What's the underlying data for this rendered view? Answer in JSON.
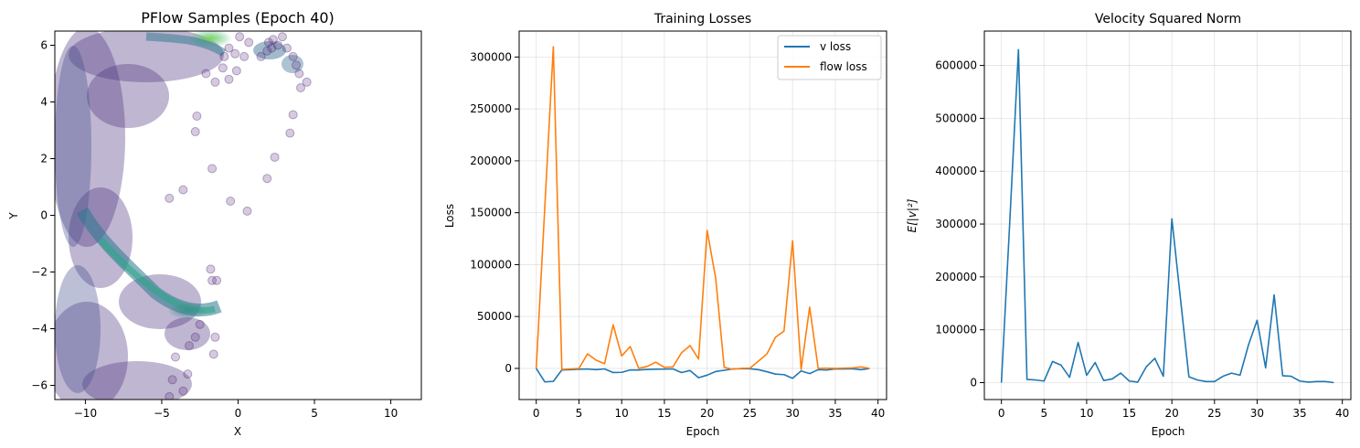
{
  "chart_data": [
    {
      "id": "scatter",
      "type": "scatter",
      "title": "PFlow Samples (Epoch 40)",
      "xlabel": "X",
      "ylabel": "Y",
      "xlim": [
        -12,
        12
      ],
      "ylim": [
        -6.5,
        6.5
      ],
      "xticks": [
        -10,
        -5,
        0,
        5,
        10
      ],
      "yticks": [
        -6,
        -4,
        -2,
        0,
        2,
        4,
        6
      ],
      "xtick_labels": [
        "−10",
        "−5",
        "0",
        "5",
        "10"
      ],
      "ytick_labels": [
        "−6",
        "−4",
        "−2",
        "0",
        "2",
        "4",
        "6"
      ],
      "grid": false,
      "colormap": "viridis",
      "marker_alpha": 0.25,
      "points": [
        [
          0.6,
          0.15
        ],
        [
          -0.5,
          0.5
        ],
        [
          -1.7,
          1.65
        ],
        [
          1.9,
          1.3
        ],
        [
          2.4,
          2.05
        ],
        [
          3.4,
          2.9
        ],
        [
          3.6,
          3.55
        ],
        [
          -2.8,
          2.95
        ],
        [
          -4.5,
          0.6
        ],
        [
          -3.6,
          0.9
        ],
        [
          -2.7,
          3.5
        ],
        [
          -1.5,
          4.7
        ],
        [
          4.5,
          4.7
        ],
        [
          4.1,
          4.5
        ],
        [
          -0.6,
          4.8
        ],
        [
          -1.8,
          -1.9
        ],
        [
          -1.7,
          -2.3
        ],
        [
          -1.4,
          -2.3
        ],
        [
          -2.5,
          -3.85
        ],
        [
          -1.5,
          -4.3
        ],
        [
          -1.6,
          -4.9
        ],
        [
          -3.2,
          -4.6
        ],
        [
          -2.8,
          -4.3
        ],
        [
          -4.1,
          -5.0
        ],
        [
          -3.3,
          -5.6
        ],
        [
          -4.3,
          -5.8
        ],
        [
          -4.5,
          -6.4
        ],
        [
          -3.6,
          -6.2
        ],
        [
          2.0,
          6.1
        ],
        [
          2.2,
          5.9
        ],
        [
          2.6,
          6.0
        ],
        [
          3.2,
          5.9
        ],
        [
          3.6,
          5.6
        ],
        [
          3.8,
          5.3
        ],
        [
          4.0,
          5.0
        ],
        [
          2.9,
          6.3
        ],
        [
          1.5,
          5.6
        ],
        [
          1.9,
          5.8
        ],
        [
          2.3,
          6.2
        ],
        [
          0.1,
          6.3
        ],
        [
          0.7,
          6.1
        ],
        [
          -0.6,
          5.9
        ],
        [
          0.4,
          5.6
        ],
        [
          -0.1,
          5.1
        ],
        [
          -0.2,
          5.7
        ],
        [
          -1.0,
          5.2
        ],
        [
          -0.9,
          5.6
        ],
        [
          -2.1,
          5.0
        ]
      ]
    },
    {
      "id": "losses",
      "type": "line",
      "title": "Training Losses",
      "xlabel": "Epoch",
      "ylabel": "Loss",
      "xlim": [
        -2,
        41
      ],
      "ylim": [
        -30000,
        325000
      ],
      "xticks": [
        0,
        5,
        10,
        15,
        20,
        25,
        30,
        35,
        40
      ],
      "yticks": [
        0,
        50000,
        100000,
        150000,
        200000,
        250000,
        300000
      ],
      "xtick_labels": [
        "0",
        "5",
        "10",
        "15",
        "20",
        "25",
        "30",
        "35",
        "40"
      ],
      "ytick_labels": [
        "0",
        "50000",
        "100000",
        "150000",
        "200000",
        "250000",
        "300000"
      ],
      "grid": true,
      "legend": "top-right",
      "x": [
        0,
        1,
        2,
        3,
        4,
        5,
        6,
        7,
        8,
        9,
        10,
        11,
        12,
        13,
        14,
        15,
        16,
        17,
        18,
        19,
        20,
        21,
        22,
        23,
        24,
        25,
        26,
        27,
        28,
        29,
        30,
        31,
        32,
        33,
        34,
        35,
        36,
        37,
        38,
        39
      ],
      "series": [
        {
          "name": "v loss",
          "color": "#1f77b4",
          "values": [
            0,
            -13000,
            -12500,
            -1500,
            -1200,
            -800,
            -600,
            -1200,
            -500,
            -4000,
            -3800,
            -1500,
            -1500,
            -1000,
            -800,
            -700,
            -500,
            -4000,
            -2000,
            -9000,
            -6500,
            -3000,
            -1800,
            -500,
            -200,
            -300,
            -1200,
            -3200,
            -5500,
            -6000,
            -9500,
            -2500,
            -5000,
            -1200,
            -1500,
            -500,
            -600,
            -300,
            -1200,
            -100
          ]
        },
        {
          "name": "flow loss",
          "color": "#ff7f0e",
          "values": [
            0,
            155000,
            310000,
            -1000,
            -500,
            0,
            14000,
            8000,
            4500,
            42000,
            12000,
            21000,
            0,
            2000,
            6000,
            1000,
            1500,
            15000,
            22000,
            9000,
            133000,
            87000,
            1000,
            -800,
            0,
            200,
            7000,
            14000,
            30000,
            36000,
            123000,
            -1000,
            59000,
            0,
            200,
            0,
            200,
            500,
            1500,
            0
          ]
        }
      ]
    },
    {
      "id": "velocity",
      "type": "line",
      "title": "Velocity Squared Norm",
      "xlabel": "Epoch",
      "ylabel": "E[|v|²]",
      "xlim": [
        -2,
        41
      ],
      "ylim": [
        -32000,
        665000
      ],
      "xticks": [
        0,
        5,
        10,
        15,
        20,
        25,
        30,
        35,
        40
      ],
      "yticks": [
        0,
        100000,
        200000,
        300000,
        400000,
        500000,
        600000
      ],
      "xtick_labels": [
        "0",
        "5",
        "10",
        "15",
        "20",
        "25",
        "30",
        "35",
        "40"
      ],
      "ytick_labels": [
        "0",
        "100000",
        "200000",
        "300000",
        "400000",
        "500000",
        "600000"
      ],
      "grid": true,
      "x": [
        0,
        1,
        2,
        3,
        4,
        5,
        6,
        7,
        8,
        9,
        10,
        11,
        12,
        13,
        14,
        15,
        16,
        17,
        18,
        19,
        20,
        21,
        22,
        23,
        24,
        25,
        26,
        27,
        28,
        29,
        30,
        31,
        32,
        33,
        34,
        35,
        36,
        37,
        38,
        39
      ],
      "series": [
        {
          "color": "#1f77b4",
          "values": [
            0,
            310000,
            630000,
            6000,
            5000,
            3000,
            40000,
            33000,
            10000,
            76000,
            14000,
            38000,
            4000,
            7000,
            18000,
            3000,
            1000,
            30000,
            46000,
            12000,
            310000,
            160000,
            11000,
            5000,
            2000,
            2000,
            12000,
            18000,
            14000,
            72000,
            118000,
            28000,
            166000,
            13000,
            12000,
            3000,
            1000,
            2000,
            2000,
            0
          ]
        }
      ]
    }
  ]
}
